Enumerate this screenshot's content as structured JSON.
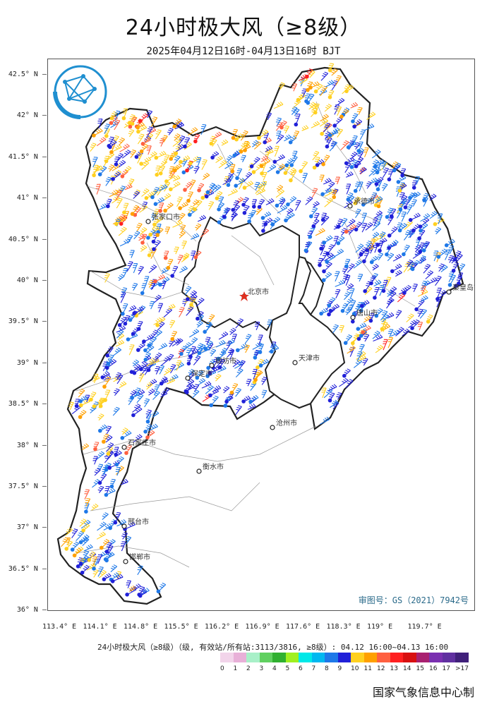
{
  "title": "24小时极大风（≥8级）",
  "subtitle": "2025年04月12日16时-04月13日16时 BJT",
  "map": {
    "lat_ticks": [
      "42.5° N",
      "42° N",
      "41.5° N",
      "41° N",
      "40.5° N",
      "40° N",
      "39.5° N",
      "39° N",
      "38.5° N",
      "38° N",
      "37.5° N",
      "37° N",
      "36.5° N",
      "36° N"
    ],
    "lon_ticks": [
      "113.4° E",
      "114.1° E",
      "114.8° E",
      "115.5° E",
      "116.2° E",
      "116.9° E",
      "117.6° E",
      "118.3° E",
      "119° E",
      "119.7° E"
    ],
    "cities": [
      "张家口市",
      "承德市",
      "北京市",
      "天津市",
      "保定市",
      "廊坊市",
      "唐山市",
      "秦皇岛市",
      "沧州市",
      "石家庄市",
      "衡水市",
      "邢台市",
      "邯郸市"
    ],
    "approval_number": "审图号：GS（2021）7942号",
    "boundary_color": "#222222"
  },
  "legend": {
    "caption": "24小时极大风（≥8级）（级, 有效站/所有站:3113/3816, ≥8级）: 04.12 16:00~04.13 16:00",
    "labels": [
      "0",
      "1",
      "2",
      "3",
      "4",
      "5",
      "6",
      "7",
      "8",
      "9",
      "10",
      "11",
      "12",
      "13",
      "14",
      "15",
      "16",
      "17",
      ">17"
    ],
    "colors": [
      "#f2d4ea",
      "#e8b0d8",
      "#a8f0c8",
      "#60d060",
      "#30b030",
      "#a0f020",
      "#00e8e8",
      "#00b8f0",
      "#1e78e8",
      "#2020d8",
      "#ffd020",
      "#ffa000",
      "#ff6040",
      "#ff2020",
      "#d81010",
      "#a82070",
      "#7a30b0",
      "#6030a0",
      "#40207a"
    ]
  },
  "producer": "国家气象信息中心制"
}
